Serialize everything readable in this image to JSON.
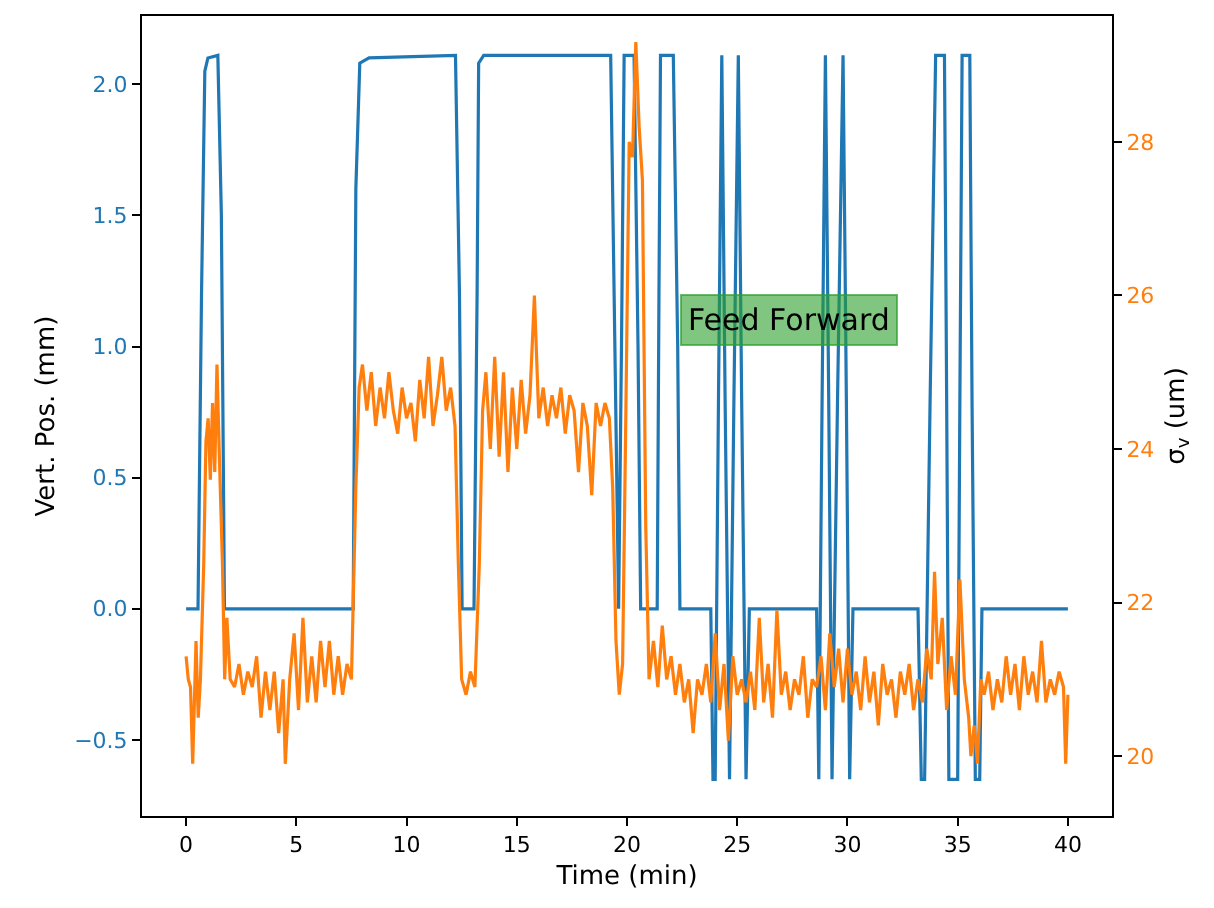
{
  "chart_data": {
    "type": "line",
    "xlabel": "Time (min)",
    "ylabel": "Vert. Pos. (mm)",
    "y2label": "σ$_{v}$ (um)",
    "xlim": [
      -2,
      42
    ],
    "xticks": [
      0,
      5,
      10,
      15,
      20,
      25,
      30,
      35,
      40
    ],
    "ylim": [
      -0.79,
      2.26
    ],
    "yticks": [
      {
        "value": -0.5,
        "label": "−0.5"
      },
      {
        "value": 0,
        "label": "0.0"
      },
      0.5,
      {
        "value": 1,
        "label": "1.0"
      },
      1.5,
      {
        "value": 2,
        "label": "2.0"
      }
    ],
    "y2lim": [
      19.22,
      29.64
    ],
    "y2ticks": [
      20,
      22,
      24,
      26,
      28
    ],
    "marker": "none",
    "line_style": "solid",
    "annotations": [
      "Feed Forward"
    ],
    "series": [
      {
        "color": "#1f77b4",
        "x": [
          0,
          0.54,
          0.7,
          0.85,
          0.99,
          1.44,
          1.6,
          1.74,
          7.58,
          7.7,
          7.88,
          8.3,
          12.22,
          12.4,
          12.52,
          13.06,
          13.2,
          13.27,
          13.5,
          19.26,
          19.45,
          19.62,
          19.75,
          19.87,
          20.32,
          20.5,
          20.62,
          21.37,
          21.45,
          21.52,
          22.1,
          22.3,
          22.4,
          23.8,
          23.9,
          24.0,
          24.15,
          24.3,
          24.45,
          24.65,
          24.85,
          25.05,
          25.2,
          25.4,
          25.55,
          28.6,
          28.7,
          28.85,
          29.0,
          29.15,
          29.3,
          29.55,
          29.8,
          29.95,
          30.1,
          30.25,
          33.2,
          33.35,
          33.5,
          33.75,
          34.0,
          34.4,
          34.5,
          34.6,
          35.0,
          35.1,
          35.2,
          35.55,
          35.65,
          35.8,
          36.0,
          36.1,
          40
        ],
        "values": [
          0,
          0,
          1.2,
          2.05,
          2.1,
          2.11,
          1.5,
          0,
          0,
          1.6,
          2.08,
          2.1,
          2.11,
          1.2,
          0,
          0,
          1.2,
          2.08,
          2.11,
          2.11,
          1.0,
          0,
          1.0,
          2.11,
          2.11,
          1.0,
          0,
          0,
          1.2,
          2.11,
          2.11,
          1.0,
          0,
          0,
          -0.65,
          -0.65,
          0.8,
          2.11,
          0.8,
          -0.65,
          0.8,
          2.11,
          0.8,
          -0.65,
          0,
          0,
          -0.65,
          0.8,
          2.11,
          0.8,
          -0.65,
          0.8,
          2.11,
          0.8,
          -0.65,
          0,
          0,
          -0.65,
          -0.65,
          0.8,
          2.11,
          2.11,
          0.8,
          -0.65,
          -0.65,
          0.8,
          2.11,
          2.11,
          0.8,
          -0.65,
          -0.65,
          0,
          0
        ]
      },
      {
        "color": "#ff7f0e",
        "axis": "y2",
        "x": [
          0,
          0.1,
          0.2,
          0.3,
          0.45,
          0.55,
          0.65,
          0.8,
          0.9,
          1.0,
          1.1,
          1.2,
          1.3,
          1.4,
          1.5,
          1.65,
          1.75,
          1.85,
          2.0,
          2.2,
          2.4,
          2.6,
          2.8,
          3.0,
          3.2,
          3.4,
          3.6,
          3.8,
          4.0,
          4.2,
          4.4,
          4.5,
          4.7,
          4.9,
          5.1,
          5.3,
          5.5,
          5.7,
          5.9,
          6.1,
          6.3,
          6.5,
          6.7,
          6.9,
          7.1,
          7.3,
          7.5,
          7.7,
          7.85,
          8.0,
          8.2,
          8.4,
          8.6,
          8.8,
          9.0,
          9.2,
          9.4,
          9.6,
          9.8,
          10.0,
          10.2,
          10.4,
          10.6,
          10.8,
          11.0,
          11.2,
          11.4,
          11.6,
          11.8,
          12.0,
          12.2,
          12.35,
          12.5,
          12.7,
          12.9,
          13.1,
          13.3,
          13.45,
          13.6,
          13.8,
          14.0,
          14.2,
          14.4,
          14.6,
          14.8,
          15.0,
          15.2,
          15.4,
          15.6,
          15.8,
          16.0,
          16.2,
          16.4,
          16.6,
          16.8,
          17.0,
          17.2,
          17.4,
          17.6,
          17.8,
          18.0,
          18.2,
          18.4,
          18.6,
          18.8,
          19.0,
          19.2,
          19.35,
          19.5,
          19.65,
          19.8,
          19.95,
          20.1,
          20.25,
          20.4,
          20.55,
          20.7,
          20.85,
          21.0,
          21.2,
          21.4,
          21.6,
          21.8,
          22.0,
          22.2,
          22.4,
          22.6,
          22.8,
          23.0,
          23.2,
          23.4,
          23.6,
          23.8,
          24.0,
          24.2,
          24.4,
          24.6,
          24.8,
          25.0,
          25.2,
          25.4,
          25.6,
          25.8,
          26.0,
          26.2,
          26.4,
          26.6,
          26.8,
          27.0,
          27.2,
          27.4,
          27.6,
          27.8,
          28.0,
          28.2,
          28.4,
          28.6,
          28.8,
          29.0,
          29.2,
          29.4,
          29.6,
          29.8,
          30.0,
          30.2,
          30.4,
          30.6,
          30.8,
          31.0,
          31.2,
          31.4,
          31.6,
          31.8,
          32.0,
          32.2,
          32.4,
          32.6,
          32.8,
          33.0,
          33.2,
          33.4,
          33.6,
          33.8,
          33.95,
          34.1,
          34.3,
          34.5,
          34.7,
          34.9,
          35.1,
          35.3,
          35.5,
          35.6,
          35.75,
          35.9,
          36.05,
          36.2,
          36.4,
          36.6,
          36.8,
          37.0,
          37.2,
          37.4,
          37.6,
          37.8,
          38.0,
          38.2,
          38.4,
          38.6,
          38.8,
          39.0,
          39.2,
          39.4,
          39.6,
          39.8,
          39.9,
          40.0
        ],
        "values": [
          21.3,
          21.0,
          20.9,
          19.9,
          21.5,
          20.5,
          21.0,
          22.5,
          24.1,
          24.4,
          23.6,
          24.6,
          23.7,
          25.1,
          24.0,
          22.5,
          21.0,
          21.8,
          21.0,
          20.9,
          21.2,
          20.8,
          21.1,
          20.9,
          21.3,
          20.5,
          21.1,
          20.6,
          21.1,
          20.3,
          21.0,
          19.9,
          21.0,
          21.6,
          20.6,
          21.8,
          20.7,
          21.3,
          20.7,
          21.5,
          20.9,
          21.5,
          20.8,
          21.3,
          20.8,
          21.2,
          21.0,
          23.5,
          24.8,
          25.1,
          24.5,
          25.0,
          24.3,
          24.8,
          24.4,
          25.0,
          24.5,
          24.2,
          24.8,
          24.4,
          24.6,
          24.1,
          24.9,
          24.4,
          25.2,
          24.3,
          24.7,
          25.2,
          24.5,
          24.8,
          24.3,
          22.5,
          21.0,
          20.8,
          21.1,
          20.9,
          22.5,
          24.5,
          25.0,
          24.0,
          25.2,
          23.9,
          25.0,
          23.7,
          24.8,
          24.0,
          24.9,
          24.2,
          24.7,
          26.0,
          24.4,
          24.8,
          24.3,
          24.7,
          24.4,
          24.8,
          24.2,
          24.7,
          24.5,
          23.7,
          24.6,
          24.3,
          23.4,
          24.6,
          24.3,
          24.6,
          24.4,
          23.5,
          21.5,
          20.8,
          21.2,
          24.5,
          28.0,
          27.8,
          29.3,
          28.2,
          27.5,
          23.0,
          21.0,
          21.5,
          20.9,
          21.7,
          21.0,
          21.3,
          20.8,
          21.2,
          20.7,
          21.0,
          20.3,
          21.0,
          20.8,
          21.2,
          20.7,
          21.6,
          20.6,
          21.2,
          20.2,
          21.3,
          20.8,
          21.0,
          20.7,
          21.1,
          20.6,
          21.8,
          20.7,
          21.2,
          20.5,
          21.9,
          20.8,
          21.1,
          20.6,
          21.0,
          20.8,
          21.3,
          20.5,
          21.0,
          20.9,
          21.3,
          20.6,
          21.6,
          20.9,
          21.4,
          20.7,
          21.4,
          20.8,
          21.1,
          20.6,
          21.3,
          20.7,
          21.1,
          20.4,
          21.2,
          20.8,
          21.0,
          20.5,
          21.1,
          20.8,
          21.2,
          20.6,
          21.0,
          20.7,
          21.4,
          21.0,
          22.4,
          21.2,
          21.8,
          20.6,
          21.3,
          20.8,
          22.3,
          21.0,
          20.5,
          20.0,
          20.4,
          19.9,
          21.0,
          20.8,
          21.1,
          20.6,
          21.0,
          20.7,
          21.3,
          20.8,
          21.2,
          20.6,
          21.3,
          20.8,
          21.1,
          20.7,
          21.5,
          20.7,
          21.0,
          20.8,
          21.1,
          20.9,
          19.9,
          20.8
        ]
      }
    ]
  }
}
